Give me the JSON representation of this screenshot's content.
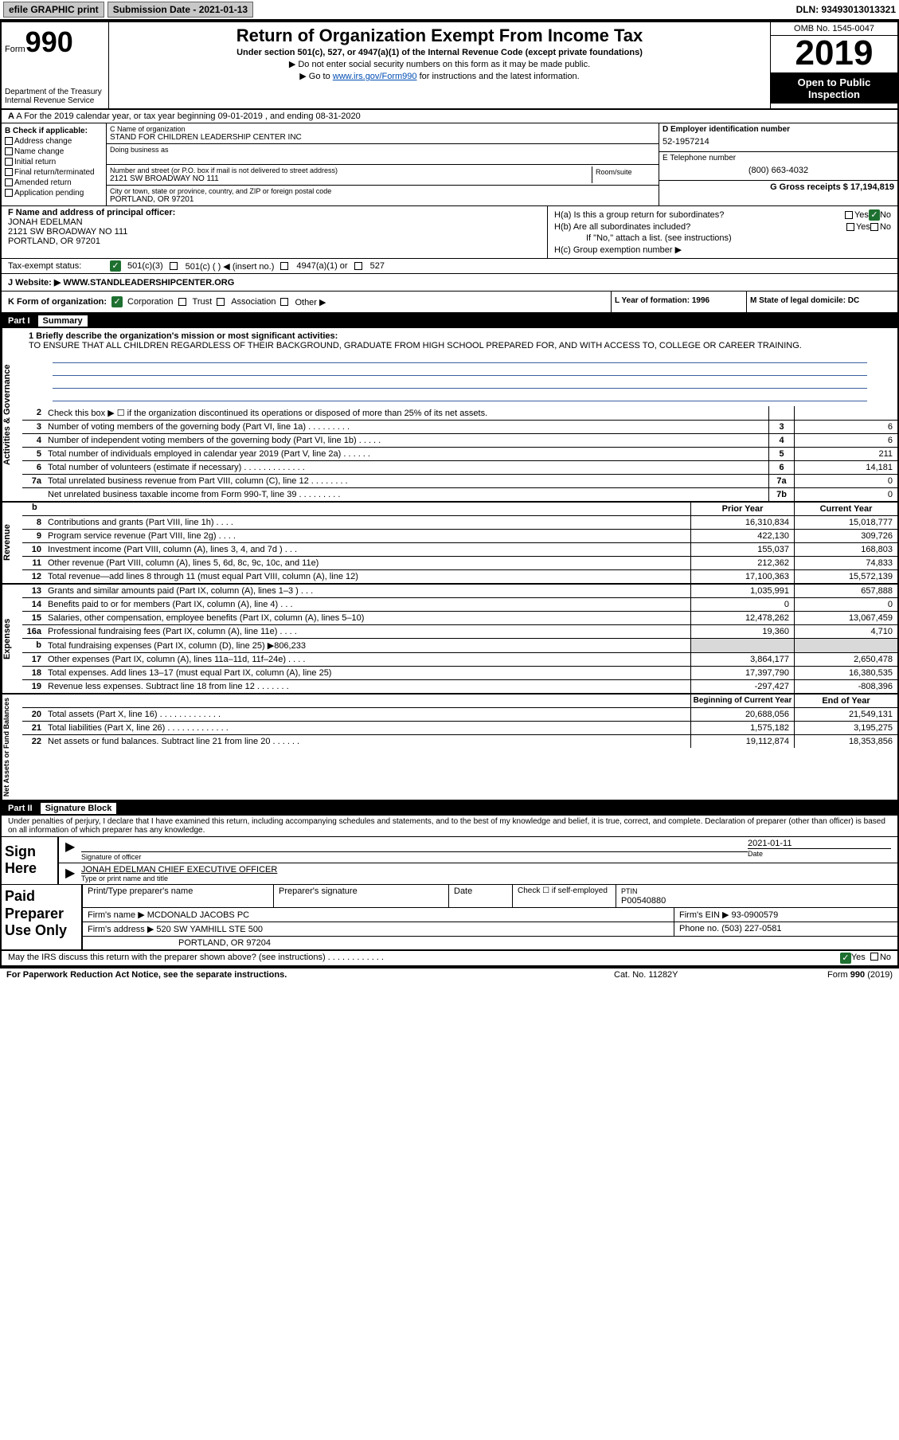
{
  "topbar": {
    "efile": "efile GRAPHIC print",
    "submission_label": "Submission Date - 2021-01-13",
    "dln": "DLN: 93493013013321"
  },
  "header": {
    "form_prefix": "Form",
    "form_num": "990",
    "dept": "Department of the Treasury\nInternal Revenue Service",
    "title": "Return of Organization Exempt From Income Tax",
    "sub": "Under section 501(c), 527, or 4947(a)(1) of the Internal Revenue Code (except private foundations)",
    "arrow1": "▶ Do not enter social security numbers on this form as it may be made public.",
    "arrow2_pre": "▶ Go to ",
    "arrow2_link": "www.irs.gov/Form990",
    "arrow2_post": " for instructions and the latest information.",
    "omb": "OMB No. 1545-0047",
    "year": "2019",
    "open": "Open to Public Inspection"
  },
  "rowA": "A For the 2019 calendar year, or tax year beginning 09-01-2019   , and ending 08-31-2020",
  "B": {
    "label": "B Check if applicable:",
    "items": [
      "Address change",
      "Name change",
      "Initial return",
      "Final return/terminated",
      "Amended return",
      "Application pending"
    ]
  },
  "C": {
    "name_label": "C Name of organization",
    "name": "STAND FOR CHILDREN LEADERSHIP CENTER INC",
    "dba_label": "Doing business as",
    "addr_label": "Number and street (or P.O. box if mail is not delivered to street address)",
    "addr": "2121 SW BROADWAY NO 111",
    "room_label": "Room/suite",
    "city_label": "City or town, state or province, country, and ZIP or foreign postal code",
    "city": "PORTLAND, OR  97201"
  },
  "D": {
    "label": "D Employer identification number",
    "val": "52-1957214"
  },
  "E": {
    "label": "E Telephone number",
    "val": "(800) 663-4032"
  },
  "G": {
    "label": "G Gross receipts $ 17,194,819"
  },
  "F": {
    "label": "F  Name and address of principal officer:",
    "name": "JONAH EDELMAN",
    "l1": "2121 SW BROADWAY NO 111",
    "l2": "PORTLAND, OR  97201"
  },
  "H": {
    "a": "H(a)  Is this a group return for subordinates?",
    "b": "H(b)  Are all subordinates included?",
    "note": "If \"No,\" attach a list. (see instructions)",
    "c": "H(c)  Group exemption number ▶",
    "yes": "Yes",
    "no": "No"
  },
  "I": {
    "label": "Tax-exempt status:",
    "o1": "501(c)(3)",
    "o2": "501(c) (  ) ◀ (insert no.)",
    "o3": "4947(a)(1) or",
    "o4": "527"
  },
  "J": {
    "label": "J   Website: ▶",
    "val": "WWW.STANDLEADERSHIPCENTER.ORG"
  },
  "K": {
    "label": "K Form of organization:",
    "o1": "Corporation",
    "o2": "Trust",
    "o3": "Association",
    "o4": "Other ▶"
  },
  "L": "L Year of formation: 1996",
  "M": "M State of legal domicile: DC",
  "part1": {
    "num": "Part I",
    "title": "Summary"
  },
  "mission": {
    "label": "1   Briefly describe the organization's mission or most significant activities:",
    "text": "TO ENSURE THAT ALL CHILDREN REGARDLESS OF THEIR BACKGROUND, GRADUATE FROM HIGH SCHOOL PREPARED FOR, AND WITH ACCESS TO, COLLEGE OR CAREER TRAINING."
  },
  "side": {
    "ag": "Activities & Governance",
    "rev": "Revenue",
    "exp": "Expenses",
    "net": "Net Assets or Fund Balances"
  },
  "lines_ag": [
    {
      "n": "2",
      "t": "Check this box ▶ ☐  if the organization discontinued its operations or disposed of more than 25% of its net assets.",
      "box": "",
      "v": ""
    },
    {
      "n": "3",
      "t": "Number of voting members of the governing body (Part VI, line 1a)   .    .    .    .    .    .    .    .    .",
      "box": "3",
      "v": "6"
    },
    {
      "n": "4",
      "t": "Number of independent voting members of the governing body (Part VI, line 1b)   .    .    .    .    .",
      "box": "4",
      "v": "6"
    },
    {
      "n": "5",
      "t": "Total number of individuals employed in calendar year 2019 (Part V, line 2a)   .    .    .    .    .    .",
      "box": "5",
      "v": "211"
    },
    {
      "n": "6",
      "t": "Total number of volunteers (estimate if necessary)   .    .    .    .    .    .    .    .    .    .    .    .    .",
      "box": "6",
      "v": "14,181"
    },
    {
      "n": "7a",
      "t": "Total unrelated business revenue from Part VIII, column (C), line 12   .    .    .    .    .    .    .    .",
      "box": "7a",
      "v": "0"
    },
    {
      "n": "",
      "t": "Net unrelated business taxable income from Form 990-T, line 39   .    .    .    .    .    .    .    .    .",
      "box": "7b",
      "v": "0"
    }
  ],
  "col_hdrs": {
    "prior": "Prior Year",
    "curr": "Current Year"
  },
  "lines_rev": [
    {
      "n": "8",
      "t": "Contributions and grants (Part VIII, line 1h)   .    .    .    .",
      "p": "16,310,834",
      "c": "15,018,777"
    },
    {
      "n": "9",
      "t": "Program service revenue (Part VIII, line 2g)   .    .    .    .",
      "p": "422,130",
      "c": "309,726"
    },
    {
      "n": "10",
      "t": "Investment income (Part VIII, column (A), lines 3, 4, and 7d )   .    .    .",
      "p": "155,037",
      "c": "168,803"
    },
    {
      "n": "11",
      "t": "Other revenue (Part VIII, column (A), lines 5, 6d, 8c, 9c, 10c, and 11e)",
      "p": "212,362",
      "c": "74,833"
    },
    {
      "n": "12",
      "t": "Total revenue—add lines 8 through 11 (must equal Part VIII, column (A), line 12)",
      "p": "17,100,363",
      "c": "15,572,139"
    }
  ],
  "lines_exp": [
    {
      "n": "13",
      "t": "Grants and similar amounts paid (Part IX, column (A), lines 1–3 )   .    .    .",
      "p": "1,035,991",
      "c": "657,888"
    },
    {
      "n": "14",
      "t": "Benefits paid to or for members (Part IX, column (A), line 4)   .    .    .",
      "p": "0",
      "c": "0"
    },
    {
      "n": "15",
      "t": "Salaries, other compensation, employee benefits (Part IX, column (A), lines 5–10)",
      "p": "12,478,262",
      "c": "13,067,459"
    },
    {
      "n": "16a",
      "t": "Professional fundraising fees (Part IX, column (A), line 11e)   .    .    .    .",
      "p": "19,360",
      "c": "4,710"
    },
    {
      "n": "b",
      "t": "Total fundraising expenses (Part IX, column (D), line 25) ▶806,233",
      "p": "",
      "c": "",
      "grey": true
    },
    {
      "n": "17",
      "t": "Other expenses (Part IX, column (A), lines 11a–11d, 11f–24e)   .    .    .    .",
      "p": "3,864,177",
      "c": "2,650,478"
    },
    {
      "n": "18",
      "t": "Total expenses. Add lines 13–17 (must equal Part IX, column (A), line 25)",
      "p": "17,397,790",
      "c": "16,380,535"
    },
    {
      "n": "19",
      "t": "Revenue less expenses. Subtract line 18 from line 12   .    .    .    .    .    .    .",
      "p": "-297,427",
      "c": "-808,396"
    }
  ],
  "col_hdrs2": {
    "beg": "Beginning of Current Year",
    "end": "End of Year"
  },
  "lines_net": [
    {
      "n": "20",
      "t": "Total assets (Part X, line 16)   .    .    .    .    .    .    .    .    .    .    .    .    .",
      "p": "20,688,056",
      "c": "21,549,131"
    },
    {
      "n": "21",
      "t": "Total liabilities (Part X, line 26)   .    .    .    .    .    .    .    .    .    .    .    .    .",
      "p": "1,575,182",
      "c": "3,195,275"
    },
    {
      "n": "22",
      "t": "Net assets or fund balances. Subtract line 21 from line 20   .    .    .    .    .    .",
      "p": "19,112,874",
      "c": "18,353,856"
    }
  ],
  "part2": {
    "num": "Part II",
    "title": "Signature Block"
  },
  "perjury": "Under penalties of perjury, I declare that I have examined this return, including accompanying schedules and statements, and to the best of my knowledge and belief, it is true, correct, and complete. Declaration of preparer (other than officer) is based on all information of which preparer has any knowledge.",
  "sign": {
    "lbl": "Sign Here",
    "sig_lbl": "Signature of officer",
    "date_lbl": "Date",
    "date": "2021-01-11",
    "name": "JONAH EDELMAN  CHIEF EXECUTIVE OFFICER",
    "name_lbl": "Type or print name and title"
  },
  "paid": {
    "lbl": "Paid Preparer Use Only",
    "h1": "Print/Type preparer's name",
    "h2": "Preparer's signature",
    "h3": "Date",
    "chk_lbl": "Check ☐  if self-employed",
    "ptin_lbl": "PTIN",
    "ptin": "P00540880",
    "firm_lbl": "Firm's name    ▶",
    "firm": "MCDONALD JACOBS PC",
    "ein_lbl": "Firm's EIN ▶ 93-0900579",
    "addr_lbl": "Firm's address ▶",
    "addr1": "520 SW YAMHILL STE 500",
    "addr2": "PORTLAND, OR  97204",
    "phone_lbl": "Phone no. (503) 227-0581"
  },
  "discuss": "May the IRS discuss this return with the preparer shown above? (see instructions)   .    .    .    .    .    .    .    .    .    .    .    .",
  "discuss_yes": "Yes",
  "discuss_no": "No",
  "footer": {
    "l": "For Paperwork Reduction Act Notice, see the separate instructions.",
    "c": "Cat. No. 11282Y",
    "r": "Form 990 (2019)"
  },
  "colors": {
    "link": "#004db3",
    "check": "#1e7030"
  }
}
